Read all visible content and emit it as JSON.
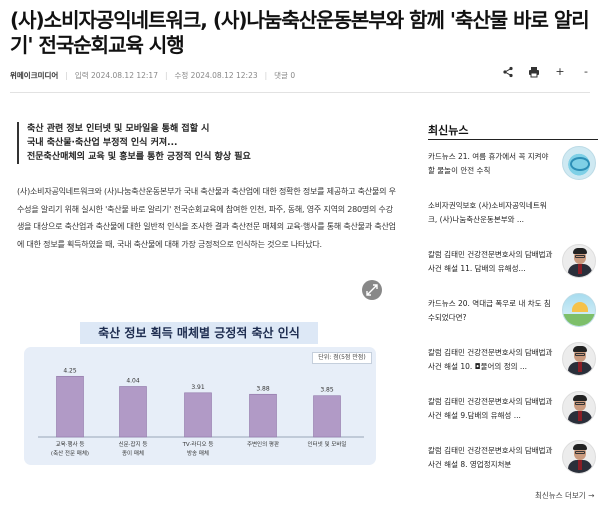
{
  "article": {
    "headline": "(사)소비자공익네트워크, (사)나눔축산운동본부와 함께 '축산물 바로 알리기' 전국순회교육 시행",
    "publisher": "위메이크미디어",
    "published": "입력 2024.08.12 12:17",
    "modified": "수정 2024.08.12 12:23",
    "comments": "댓글 0",
    "summary": [
      "축산 관련 정보 인터넷 및 모바일을 통해 접할 시",
      "국내 축산물·축산업 부정적 인식 커져...",
      "전문축산매체의 교육 및 홍보를 통한 긍정적 인식 향상 필요"
    ],
    "body": "(사)소비자공익네트워크와 (사)나눔축산운동본부가 국내 축산물과 축산업에 대한 정확한 정보를 제공하고 축산물의 우수성을 알리기 위해 실시한 '축산물 바로 알리기' 전국순회교육에 참여한 인천, 파주, 동해, 영주 지역의 280명의 수강생을 대상으로 축산업과 축산물에 대한 일반적 인식을 조사한 결과 축산전문 매체의 교육·행사를 통해 축산물과 축산업에 대한 정보를 획득하였을 때, 국내 축산물에 대해 가장 긍정적으로 인식하는 것으로 나타났다."
  },
  "toolbar": {
    "share_icon": "share-icon",
    "print_icon": "print-icon",
    "zoom_in": "+",
    "zoom_out": "-",
    "expand_icon": "expand-icon"
  },
  "chart_data": {
    "type": "bar",
    "title": "축산 정보 획득 매체별 긍정적 축산 인식",
    "unit_label": "단위: 점(5점 만점)",
    "categories": [
      [
        "교육·행사 등",
        "(축산 전문 매체)"
      ],
      [
        "신문·잡지 등",
        "종이 매체"
      ],
      [
        "TV·라디오 등",
        "방송 매체"
      ],
      [
        "주변인의 평판"
      ],
      [
        "인터넷 및 모바일"
      ]
    ],
    "values": [
      4.25,
      4.04,
      3.91,
      3.88,
      3.85
    ],
    "ylim": [
      3.0,
      4.4
    ],
    "bar_color": "#b19ac6",
    "bar_stroke": "#8f77a8"
  },
  "sidebar": {
    "title": "최신뉴스",
    "items": [
      {
        "text": "카드뉴스 21. 여름 휴가에서 꼭 지켜야할 물놀이 안전 수칙",
        "thumb": "water-safety-thumbnail"
      },
      {
        "text": "소비자권익보호 (사)소비자공익네트워크, (사)나눔축산운동본부와 ...",
        "thumb": ""
      },
      {
        "text": "칼럼 김태민 건강전문변호사의 담배법과 사건 해설 11. 담배의 유해성...",
        "thumb": "columnist-photo"
      },
      {
        "text": "카드뉴스 20. 역대급 폭우로 내 차도 침수되었다면?",
        "thumb": "flood-car-thumbnail"
      },
      {
        "text": "칼럼 김태민 건강전문변호사의 담배법과 사건 해설 10. ◘물어의 정의 ...",
        "thumb": "columnist-photo"
      },
      {
        "text": "칼럼 김태민 건강전문변호사의 담배법과 사건 해설 9.담배의 유해성 ...",
        "thumb": "columnist-photo"
      },
      {
        "text": "칼럼 김태민 건강전문변호사의 담배법과 사건 해설 8. 영업정지처분",
        "thumb": "columnist-photo"
      }
    ],
    "more": "최신뉴스 더보기 →"
  }
}
